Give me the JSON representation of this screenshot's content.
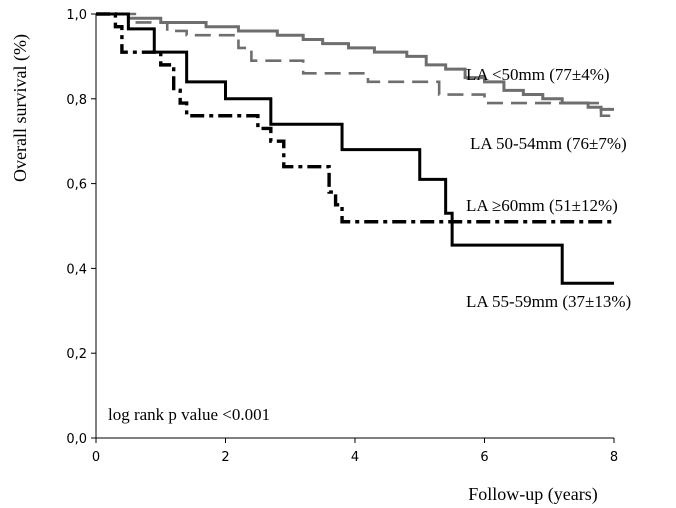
{
  "chart_data": {
    "type": "line",
    "step": true,
    "xlabel": "Follow-up (years)",
    "ylabel": "Overall survival (%)",
    "xlim": [
      0,
      8
    ],
    "ylim": [
      0,
      1
    ],
    "x_ticks": [
      "0",
      "2",
      "4",
      "6",
      "8"
    ],
    "y_ticks": [
      "0,0",
      "0,2",
      "0,4",
      "0,6",
      "0,8",
      "1,0"
    ],
    "annotation": "log rank p value <0.001",
    "series": [
      {
        "name": "LA <50mm (77±4%)",
        "color": "#6e6e6e",
        "style": "solid",
        "x": [
          0,
          0.5,
          1.0,
          1.7,
          2.2,
          2.8,
          3.2,
          3.5,
          3.9,
          4.3,
          4.8,
          5.1,
          5.4,
          5.7,
          6.0,
          6.3,
          6.6,
          6.9,
          7.2,
          7.6,
          7.8,
          8.0
        ],
        "y": [
          1.0,
          0.99,
          0.98,
          0.97,
          0.96,
          0.95,
          0.94,
          0.93,
          0.92,
          0.91,
          0.9,
          0.88,
          0.87,
          0.85,
          0.84,
          0.82,
          0.81,
          0.8,
          0.79,
          0.78,
          0.775,
          0.775
        ]
      },
      {
        "name": "LA 50-54mm (76±7%)",
        "color": "#6e6e6e",
        "style": "dash",
        "x": [
          0,
          0.6,
          1.1,
          1.4,
          2.2,
          2.4,
          3.2,
          4.2,
          5.3,
          6.0,
          7.8,
          8.0
        ],
        "y": [
          1.0,
          0.98,
          0.96,
          0.95,
          0.92,
          0.89,
          0.86,
          0.84,
          0.81,
          0.79,
          0.76,
          0.76
        ]
      },
      {
        "name": "LA ≥60mm (51±12%)",
        "color": "#000000",
        "style": "dashdot",
        "x": [
          0,
          0.3,
          0.4,
          0.8,
          1.0,
          1.2,
          1.3,
          1.4,
          2.5,
          2.7,
          2.9,
          3.6,
          3.7,
          3.8,
          8.0
        ],
        "y": [
          1.0,
          0.97,
          0.91,
          0.91,
          0.88,
          0.82,
          0.79,
          0.76,
          0.73,
          0.7,
          0.64,
          0.58,
          0.55,
          0.51,
          0.51
        ]
      },
      {
        "name": "LA 55-59mm (37±13%)",
        "color": "#000000",
        "style": "solid",
        "x": [
          0,
          0.5,
          0.9,
          1.4,
          2.0,
          2.7,
          3.8,
          5.0,
          5.4,
          5.5,
          7.2,
          8.0
        ],
        "y": [
          1.0,
          0.965,
          0.91,
          0.84,
          0.8,
          0.74,
          0.68,
          0.61,
          0.53,
          0.455,
          0.365,
          0.365
        ]
      }
    ]
  }
}
